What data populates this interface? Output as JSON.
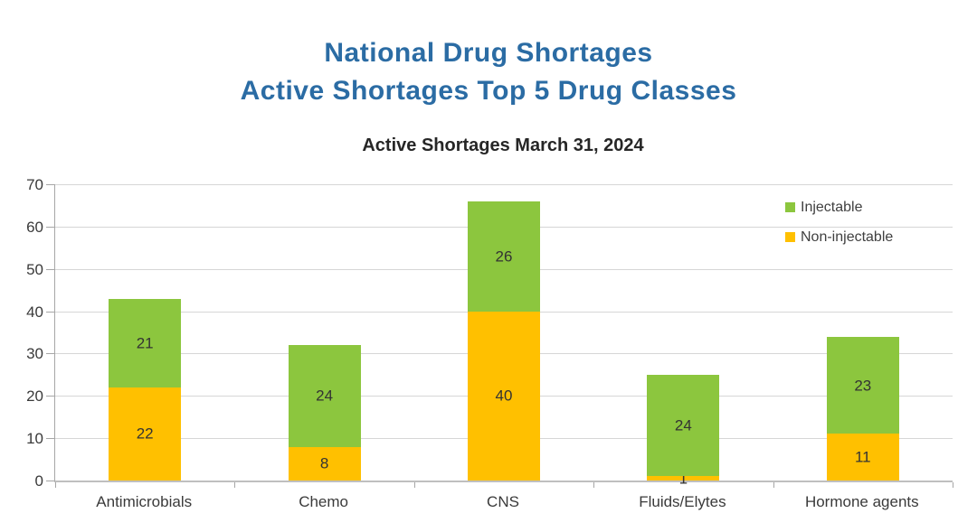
{
  "page_title_lines": [
    "National Drug Shortages",
    "Active Shortages Top 5 Drug Classes"
  ],
  "title_color": "#2B6CA4",
  "chart_data": {
    "type": "bar",
    "stacked": true,
    "title": "Active Shortages March 31, 2024",
    "categories": [
      "Antimicrobials",
      "Chemo",
      "CNS",
      "Fluids/Elytes",
      "Hormone agents"
    ],
    "series": [
      {
        "name": "Non-injectable",
        "color": "#FFC000",
        "values": [
          22,
          8,
          40,
          1,
          11
        ]
      },
      {
        "name": "Injectable",
        "color": "#8CC63E",
        "values": [
          21,
          24,
          26,
          24,
          23
        ]
      }
    ],
    "legend_order": [
      "Injectable",
      "Non-injectable"
    ],
    "legend_position": "top-right",
    "grid": true,
    "ylim": [
      0,
      70
    ],
    "yticks": [
      0,
      10,
      20,
      30,
      40,
      50,
      60,
      70
    ],
    "xlabel": "",
    "ylabel": ""
  }
}
